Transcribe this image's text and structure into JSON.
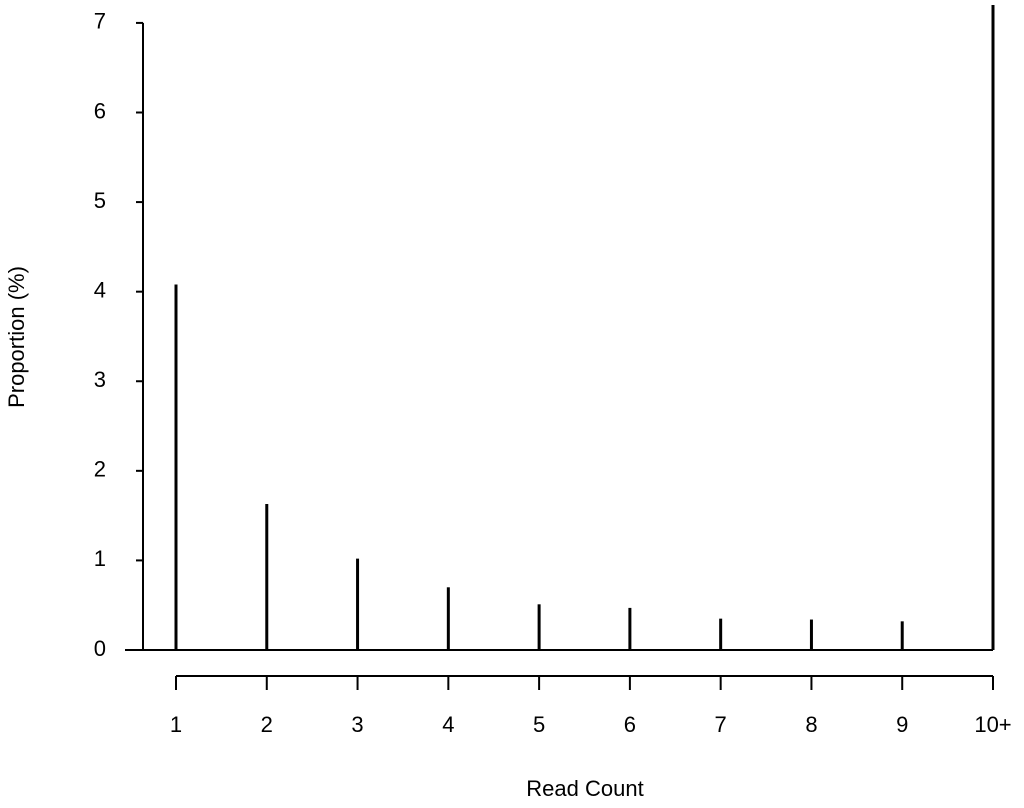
{
  "chart_data": {
    "type": "bar",
    "x_label": "Read Count",
    "y_label": "Proportion (%)",
    "categories": [
      "1",
      "2",
      "3",
      "4",
      "5",
      "6",
      "7",
      "8",
      "9",
      "10+"
    ],
    "values": [
      4.08,
      1.63,
      1.02,
      0.7,
      0.51,
      0.47,
      0.35,
      0.34,
      0.32,
      7.2
    ],
    "color": "#000000",
    "ylim": [
      0,
      7.2
    ],
    "yticks": [
      0,
      1,
      2,
      3,
      4,
      5,
      6,
      7
    ],
    "grid": false
  }
}
